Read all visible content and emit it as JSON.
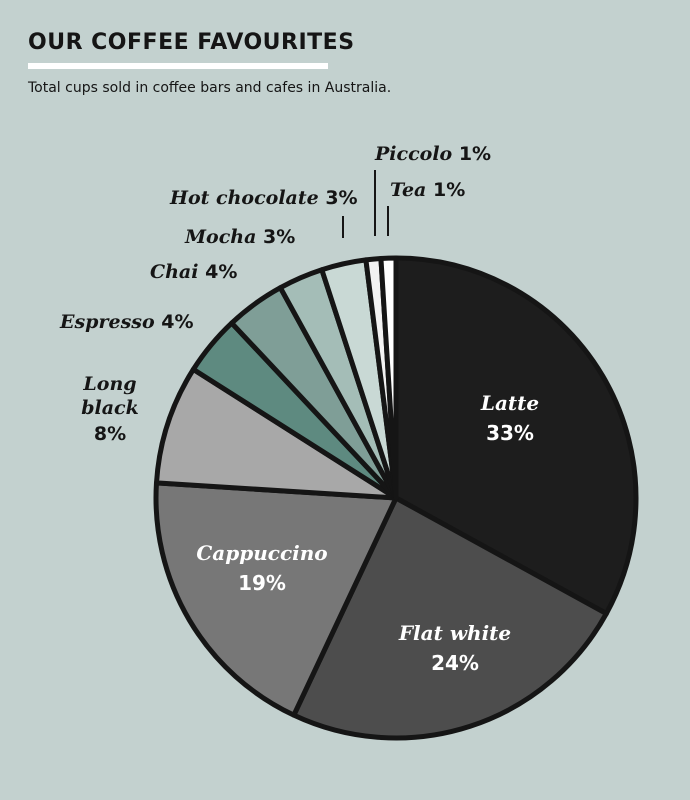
{
  "header": {
    "title": "OUR COFFEE FAVOURITES",
    "subtitle": "Total cups sold in coffee bars and cafes in Australia."
  },
  "chart_data": {
    "type": "pie",
    "title": "OUR COFFEE FAVOURITES",
    "subtitle": "Total cups sold in coffee bars and cafes in Australia.",
    "slices": [
      {
        "label": "Latte",
        "value": 33,
        "display": "33%",
        "color": "#1d1d1d"
      },
      {
        "label": "Flat white",
        "value": 24,
        "display": "24%",
        "color": "#4d4d4d"
      },
      {
        "label": "Cappuccino",
        "value": 19,
        "display": "19%",
        "color": "#777777"
      },
      {
        "label": "Long black",
        "value": 8,
        "display": "8%",
        "color": "#a8a8a8"
      },
      {
        "label": "Espresso",
        "value": 4,
        "display": "4%",
        "color": "#5e8a80"
      },
      {
        "label": "Chai",
        "value": 4,
        "display": "4%",
        "color": "#7f9e97"
      },
      {
        "label": "Mocha",
        "value": 3,
        "display": "3%",
        "color": "#a4bdb7"
      },
      {
        "label": "Hot chocolate",
        "value": 3,
        "display": "3%",
        "color": "#c9d9d5"
      },
      {
        "label": "Piccolo",
        "value": 1,
        "display": "1%",
        "color": "#f2f2f2"
      },
      {
        "label": "Tea",
        "value": 1,
        "display": "1%",
        "color": "#ffffff"
      }
    ],
    "legend": "none"
  }
}
